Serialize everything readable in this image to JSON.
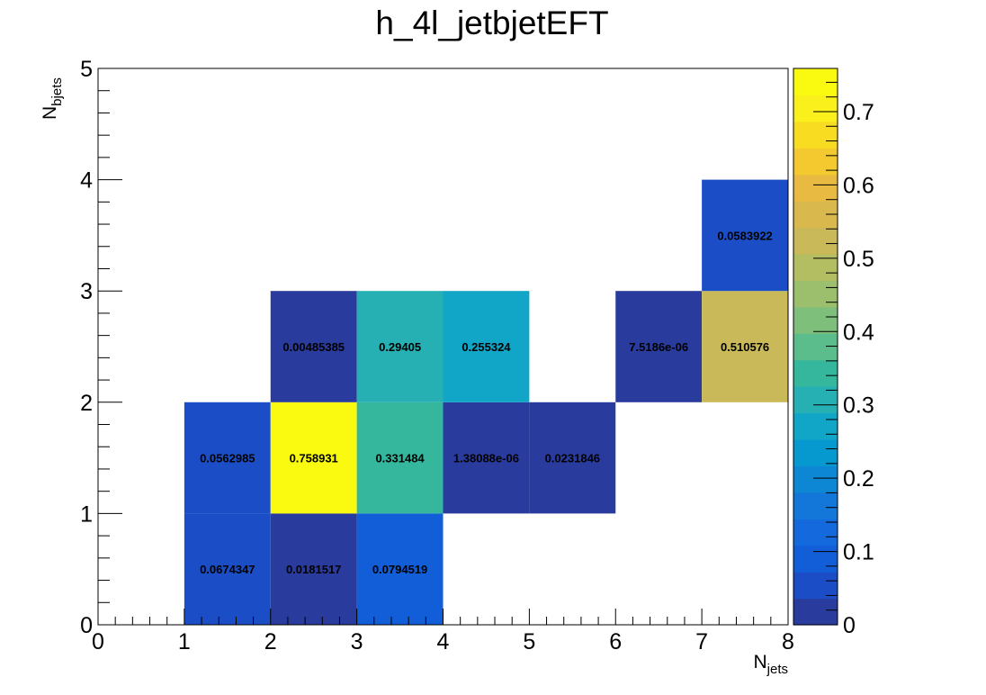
{
  "chart_data": {
    "type": "heatmap",
    "title": "h_4l_jetbjetEFT",
    "xlabel": {
      "main": "N",
      "sub": "jets"
    },
    "ylabel": {
      "main": "N",
      "sub": "bjets"
    },
    "xlim": [
      0,
      8
    ],
    "ylim": [
      0,
      5
    ],
    "xticks": [
      "0",
      "1",
      "2",
      "3",
      "4",
      "5",
      "6",
      "7",
      "8"
    ],
    "yticks": [
      "0",
      "1",
      "2",
      "3",
      "4",
      "5"
    ],
    "zlim": [
      0,
      0.758931
    ],
    "colorbar_ticks": [
      "0",
      "0.1",
      "0.2",
      "0.3",
      "0.4",
      "0.5",
      "0.6",
      "0.7"
    ],
    "colorbar_tick_values": [
      0,
      0.1,
      0.2,
      0.3,
      0.4,
      0.5,
      0.6,
      0.7
    ],
    "colorbar_colors": [
      "#2a3b9e",
      "#1b4ec6",
      "#125ed8",
      "#1469dd",
      "#1377da",
      "#0d87d3",
      "#0599cf",
      "#11a5c8",
      "#26b0b3",
      "#34b79d",
      "#5bbd8b",
      "#7ebf7b",
      "#9bbf6c",
      "#b3bd61",
      "#c9b958",
      "#d9b84e",
      "#e9ba41",
      "#f4c82f",
      "#f8dc21",
      "#f9f01c",
      "#f9fa0f"
    ],
    "cells": [
      {
        "x": 1,
        "y": 0,
        "value": 0.0674347,
        "label": "0.0674347"
      },
      {
        "x": 2,
        "y": 0,
        "value": 0.0181517,
        "label": "0.0181517"
      },
      {
        "x": 3,
        "y": 0,
        "value": 0.0794519,
        "label": "0.0794519"
      },
      {
        "x": 1,
        "y": 1,
        "value": 0.0562985,
        "label": "0.0562985"
      },
      {
        "x": 2,
        "y": 1,
        "value": 0.758931,
        "label": "0.758931"
      },
      {
        "x": 3,
        "y": 1,
        "value": 0.331484,
        "label": "0.331484"
      },
      {
        "x": 4,
        "y": 1,
        "value": 1.38088e-06,
        "label": "1.38088e-06"
      },
      {
        "x": 5,
        "y": 1,
        "value": 0.0231846,
        "label": "0.0231846"
      },
      {
        "x": 2,
        "y": 2,
        "value": 0.00485385,
        "label": "0.00485385"
      },
      {
        "x": 3,
        "y": 2,
        "value": 0.29405,
        "label": "0.29405"
      },
      {
        "x": 4,
        "y": 2,
        "value": 0.255324,
        "label": "0.255324"
      },
      {
        "x": 6,
        "y": 2,
        "value": 7.5186e-06,
        "label": "7.5186e-06"
      },
      {
        "x": 7,
        "y": 2,
        "value": 0.510576,
        "label": "0.510576"
      },
      {
        "x": 7,
        "y": 3,
        "value": 0.0583922,
        "label": "0.0583922"
      }
    ]
  }
}
